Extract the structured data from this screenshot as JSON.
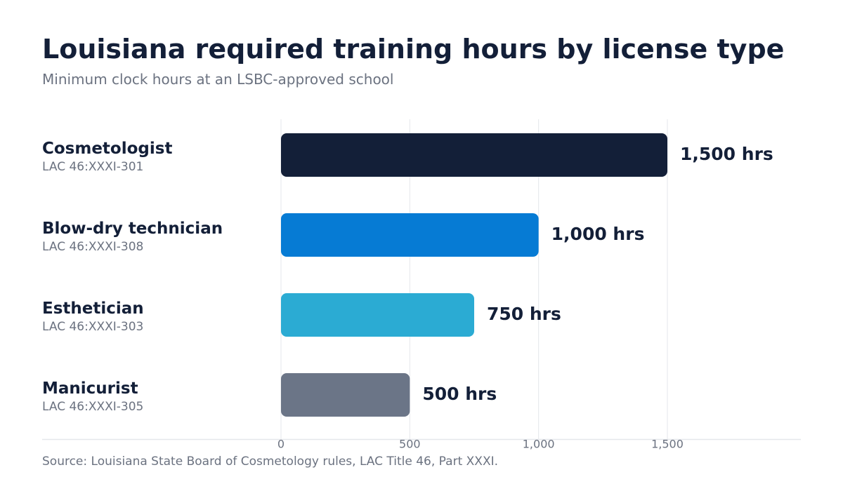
{
  "chart_data": {
    "type": "bar",
    "orientation": "horizontal",
    "title": "Louisiana required training hours by license type",
    "subtitle": "Minimum clock hours at an LSBC-approved school",
    "categories": [
      "Cosmetologist",
      "Blow-dry technician",
      "Esthetician",
      "Manicurist"
    ],
    "category_refs": [
      "LAC 46:XXXI-301",
      "LAC 46:XXXI-308",
      "LAC 46:XXXI-303",
      "LAC 46:XXXI-305"
    ],
    "values": [
      1500,
      1000,
      750,
      500
    ],
    "value_labels": [
      "1,500 hrs",
      "1,000 hrs",
      "750 hrs",
      "500 hrs"
    ],
    "bar_colors": [
      "#131f38",
      "#067bd4",
      "#2babd3",
      "#6b7587"
    ],
    "x_ticks": [
      0,
      500,
      1000,
      1500
    ],
    "x_tick_labels": [
      "0",
      "500",
      "1,000",
      "1,500"
    ],
    "xlim": [
      0,
      2000
    ],
    "grid": true,
    "xlabel": "",
    "ylabel": ""
  },
  "source": "Source: Louisiana State Board of Cosmetology rules, LAC Title 46, Part XXXI."
}
